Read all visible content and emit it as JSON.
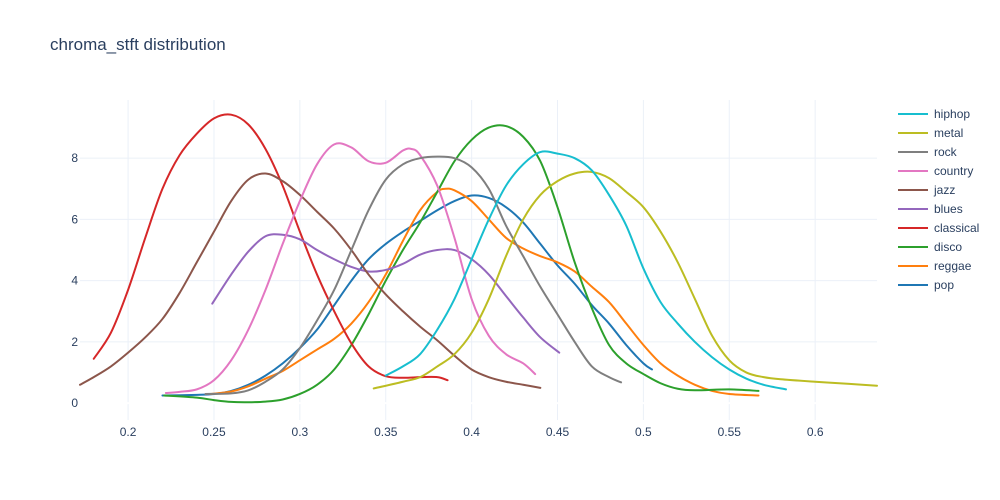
{
  "chart_data": {
    "type": "line",
    "title": "chroma_stft distribution",
    "xlabel": "",
    "ylabel": "",
    "xlim": [
      0.172,
      0.636
    ],
    "ylim": [
      -0.55,
      9.9
    ],
    "x_ticks": [
      0.2,
      0.25,
      0.3,
      0.35,
      0.4,
      0.45,
      0.5,
      0.55,
      0.6
    ],
    "x_tick_labels": [
      "0.2",
      "0.25",
      "0.3",
      "0.35",
      "0.4",
      "0.45",
      "0.5",
      "0.55",
      "0.6"
    ],
    "y_ticks": [
      0,
      2,
      4,
      6,
      8
    ],
    "y_tick_labels": [
      "0",
      "2",
      "4",
      "6",
      "8"
    ],
    "grid": true,
    "legend_position": "right",
    "series": [
      {
        "name": "hiphop",
        "color": "#17becf",
        "points": [
          [
            0.35,
            0.9
          ],
          [
            0.36,
            1.2
          ],
          [
            0.37,
            1.6
          ],
          [
            0.38,
            2.4
          ],
          [
            0.39,
            3.4
          ],
          [
            0.4,
            4.7
          ],
          [
            0.41,
            6.0
          ],
          [
            0.42,
            7.1
          ],
          [
            0.43,
            7.8
          ],
          [
            0.44,
            8.2
          ],
          [
            0.45,
            8.15
          ],
          [
            0.46,
            8.0
          ],
          [
            0.47,
            7.6
          ],
          [
            0.48,
            6.8
          ],
          [
            0.49,
            5.8
          ],
          [
            0.5,
            4.4
          ],
          [
            0.51,
            3.3
          ],
          [
            0.52,
            2.6
          ],
          [
            0.53,
            2.0
          ],
          [
            0.54,
            1.5
          ],
          [
            0.55,
            1.1
          ],
          [
            0.56,
            0.8
          ],
          [
            0.57,
            0.6
          ],
          [
            0.583,
            0.45
          ]
        ]
      },
      {
        "name": "metal",
        "color": "#bcbd22",
        "points": [
          [
            0.343,
            0.48
          ],
          [
            0.36,
            0.7
          ],
          [
            0.37,
            0.85
          ],
          [
            0.38,
            1.2
          ],
          [
            0.39,
            1.6
          ],
          [
            0.4,
            2.3
          ],
          [
            0.41,
            3.4
          ],
          [
            0.42,
            4.8
          ],
          [
            0.43,
            6.0
          ],
          [
            0.44,
            6.8
          ],
          [
            0.45,
            7.25
          ],
          [
            0.46,
            7.5
          ],
          [
            0.47,
            7.55
          ],
          [
            0.48,
            7.35
          ],
          [
            0.49,
            6.9
          ],
          [
            0.5,
            6.4
          ],
          [
            0.51,
            5.6
          ],
          [
            0.52,
            4.6
          ],
          [
            0.53,
            3.4
          ],
          [
            0.54,
            2.2
          ],
          [
            0.55,
            1.4
          ],
          [
            0.56,
            1.0
          ],
          [
            0.57,
            0.85
          ],
          [
            0.58,
            0.78
          ],
          [
            0.6,
            0.7
          ],
          [
            0.62,
            0.63
          ],
          [
            0.636,
            0.57
          ]
        ]
      },
      {
        "name": "rock",
        "color": "#7f7f7f",
        "points": [
          [
            0.245,
            0.3
          ],
          [
            0.26,
            0.32
          ],
          [
            0.27,
            0.42
          ],
          [
            0.28,
            0.7
          ],
          [
            0.29,
            1.1
          ],
          [
            0.3,
            1.8
          ],
          [
            0.31,
            2.7
          ],
          [
            0.32,
            3.7
          ],
          [
            0.33,
            5.0
          ],
          [
            0.34,
            6.3
          ],
          [
            0.35,
            7.3
          ],
          [
            0.36,
            7.8
          ],
          [
            0.37,
            8.0
          ],
          [
            0.38,
            8.05
          ],
          [
            0.39,
            8.0
          ],
          [
            0.4,
            7.7
          ],
          [
            0.41,
            7.0
          ],
          [
            0.42,
            5.8
          ],
          [
            0.43,
            4.8
          ],
          [
            0.44,
            3.8
          ],
          [
            0.45,
            2.9
          ],
          [
            0.46,
            2.0
          ],
          [
            0.47,
            1.2
          ],
          [
            0.48,
            0.85
          ],
          [
            0.487,
            0.68
          ]
        ]
      },
      {
        "name": "country",
        "color": "#e377c2",
        "points": [
          [
            0.222,
            0.33
          ],
          [
            0.23,
            0.37
          ],
          [
            0.24,
            0.45
          ],
          [
            0.25,
            0.75
          ],
          [
            0.26,
            1.4
          ],
          [
            0.27,
            2.4
          ],
          [
            0.28,
            3.7
          ],
          [
            0.29,
            5.2
          ],
          [
            0.3,
            6.6
          ],
          [
            0.31,
            7.8
          ],
          [
            0.32,
            8.45
          ],
          [
            0.33,
            8.35
          ],
          [
            0.34,
            7.9
          ],
          [
            0.35,
            7.85
          ],
          [
            0.36,
            8.25
          ],
          [
            0.365,
            8.3
          ],
          [
            0.37,
            8.1
          ],
          [
            0.38,
            7.1
          ],
          [
            0.39,
            5.4
          ],
          [
            0.4,
            3.4
          ],
          [
            0.41,
            2.2
          ],
          [
            0.42,
            1.6
          ],
          [
            0.43,
            1.3
          ],
          [
            0.437,
            0.95
          ]
        ]
      },
      {
        "name": "jazz",
        "color": "#8c564b",
        "points": [
          [
            0.172,
            0.6
          ],
          [
            0.18,
            0.85
          ],
          [
            0.19,
            1.2
          ],
          [
            0.2,
            1.65
          ],
          [
            0.21,
            2.15
          ],
          [
            0.22,
            2.75
          ],
          [
            0.23,
            3.6
          ],
          [
            0.24,
            4.6
          ],
          [
            0.25,
            5.6
          ],
          [
            0.26,
            6.6
          ],
          [
            0.27,
            7.3
          ],
          [
            0.28,
            7.5
          ],
          [
            0.29,
            7.25
          ],
          [
            0.3,
            6.8
          ],
          [
            0.31,
            6.25
          ],
          [
            0.32,
            5.7
          ],
          [
            0.33,
            5.0
          ],
          [
            0.34,
            4.2
          ],
          [
            0.35,
            3.55
          ],
          [
            0.36,
            3.0
          ],
          [
            0.37,
            2.5
          ],
          [
            0.38,
            2.05
          ],
          [
            0.39,
            1.55
          ],
          [
            0.4,
            1.1
          ],
          [
            0.41,
            0.85
          ],
          [
            0.42,
            0.7
          ],
          [
            0.43,
            0.6
          ],
          [
            0.44,
            0.5
          ]
        ]
      },
      {
        "name": "blues",
        "color": "#9467bd",
        "points": [
          [
            0.249,
            3.25
          ],
          [
            0.26,
            4.2
          ],
          [
            0.27,
            4.95
          ],
          [
            0.28,
            5.45
          ],
          [
            0.29,
            5.5
          ],
          [
            0.3,
            5.35
          ],
          [
            0.31,
            5.0
          ],
          [
            0.32,
            4.7
          ],
          [
            0.33,
            4.45
          ],
          [
            0.34,
            4.3
          ],
          [
            0.35,
            4.35
          ],
          [
            0.36,
            4.55
          ],
          [
            0.37,
            4.85
          ],
          [
            0.38,
            5.0
          ],
          [
            0.39,
            5.0
          ],
          [
            0.4,
            4.7
          ],
          [
            0.41,
            4.2
          ],
          [
            0.42,
            3.5
          ],
          [
            0.43,
            2.8
          ],
          [
            0.44,
            2.15
          ],
          [
            0.451,
            1.65
          ]
        ]
      },
      {
        "name": "classical",
        "color": "#d62728",
        "points": [
          [
            0.18,
            1.45
          ],
          [
            0.19,
            2.3
          ],
          [
            0.2,
            3.7
          ],
          [
            0.21,
            5.4
          ],
          [
            0.22,
            7.0
          ],
          [
            0.23,
            8.1
          ],
          [
            0.24,
            8.8
          ],
          [
            0.25,
            9.3
          ],
          [
            0.26,
            9.42
          ],
          [
            0.27,
            9.1
          ],
          [
            0.28,
            8.3
          ],
          [
            0.29,
            7.1
          ],
          [
            0.3,
            5.6
          ],
          [
            0.31,
            4.2
          ],
          [
            0.32,
            3.0
          ],
          [
            0.33,
            1.95
          ],
          [
            0.34,
            1.2
          ],
          [
            0.35,
            0.88
          ],
          [
            0.36,
            0.83
          ],
          [
            0.37,
            0.85
          ],
          [
            0.38,
            0.85
          ],
          [
            0.386,
            0.75
          ]
        ]
      },
      {
        "name": "disco",
        "color": "#2ca02c",
        "points": [
          [
            0.221,
            0.25
          ],
          [
            0.24,
            0.18
          ],
          [
            0.25,
            0.1
          ],
          [
            0.26,
            0.04
          ],
          [
            0.27,
            0.03
          ],
          [
            0.28,
            0.05
          ],
          [
            0.29,
            0.12
          ],
          [
            0.3,
            0.3
          ],
          [
            0.31,
            0.6
          ],
          [
            0.32,
            1.1
          ],
          [
            0.33,
            1.9
          ],
          [
            0.34,
            2.9
          ],
          [
            0.35,
            4.0
          ],
          [
            0.36,
            5.0
          ],
          [
            0.37,
            5.9
          ],
          [
            0.38,
            6.9
          ],
          [
            0.39,
            7.9
          ],
          [
            0.4,
            8.6
          ],
          [
            0.41,
            9.0
          ],
          [
            0.42,
            9.05
          ],
          [
            0.43,
            8.7
          ],
          [
            0.44,
            7.9
          ],
          [
            0.45,
            6.4
          ],
          [
            0.46,
            4.6
          ],
          [
            0.47,
            3.1
          ],
          [
            0.48,
            1.9
          ],
          [
            0.49,
            1.3
          ],
          [
            0.5,
            0.95
          ],
          [
            0.51,
            0.65
          ],
          [
            0.52,
            0.47
          ],
          [
            0.53,
            0.42
          ],
          [
            0.55,
            0.45
          ],
          [
            0.567,
            0.4
          ]
        ]
      },
      {
        "name": "reggae",
        "color": "#ff7f0e",
        "points": [
          [
            0.248,
            0.3
          ],
          [
            0.26,
            0.38
          ],
          [
            0.27,
            0.55
          ],
          [
            0.28,
            0.8
          ],
          [
            0.29,
            1.05
          ],
          [
            0.3,
            1.4
          ],
          [
            0.31,
            1.75
          ],
          [
            0.32,
            2.1
          ],
          [
            0.33,
            2.6
          ],
          [
            0.34,
            3.3
          ],
          [
            0.35,
            4.2
          ],
          [
            0.36,
            5.3
          ],
          [
            0.37,
            6.3
          ],
          [
            0.38,
            6.9
          ],
          [
            0.385,
            7.0
          ],
          [
            0.39,
            6.95
          ],
          [
            0.4,
            6.6
          ],
          [
            0.41,
            6.0
          ],
          [
            0.42,
            5.4
          ],
          [
            0.43,
            5.05
          ],
          [
            0.44,
            4.8
          ],
          [
            0.45,
            4.6
          ],
          [
            0.46,
            4.3
          ],
          [
            0.47,
            3.8
          ],
          [
            0.48,
            3.3
          ],
          [
            0.49,
            2.6
          ],
          [
            0.5,
            1.9
          ],
          [
            0.51,
            1.3
          ],
          [
            0.52,
            0.9
          ],
          [
            0.53,
            0.6
          ],
          [
            0.54,
            0.4
          ],
          [
            0.55,
            0.3
          ],
          [
            0.567,
            0.25
          ]
        ]
      },
      {
        "name": "pop",
        "color": "#1f77b4",
        "points": [
          [
            0.22,
            0.25
          ],
          [
            0.24,
            0.27
          ],
          [
            0.25,
            0.3
          ],
          [
            0.26,
            0.4
          ],
          [
            0.27,
            0.6
          ],
          [
            0.28,
            0.9
          ],
          [
            0.29,
            1.3
          ],
          [
            0.3,
            1.8
          ],
          [
            0.31,
            2.4
          ],
          [
            0.32,
            3.2
          ],
          [
            0.33,
            4.0
          ],
          [
            0.34,
            4.7
          ],
          [
            0.35,
            5.2
          ],
          [
            0.36,
            5.6
          ],
          [
            0.37,
            5.95
          ],
          [
            0.38,
            6.3
          ],
          [
            0.39,
            6.6
          ],
          [
            0.4,
            6.78
          ],
          [
            0.41,
            6.7
          ],
          [
            0.42,
            6.4
          ],
          [
            0.43,
            5.9
          ],
          [
            0.44,
            5.2
          ],
          [
            0.45,
            4.5
          ],
          [
            0.46,
            3.9
          ],
          [
            0.47,
            3.2
          ],
          [
            0.48,
            2.6
          ],
          [
            0.49,
            1.9
          ],
          [
            0.5,
            1.3
          ],
          [
            0.505,
            1.1
          ]
        ]
      }
    ]
  }
}
